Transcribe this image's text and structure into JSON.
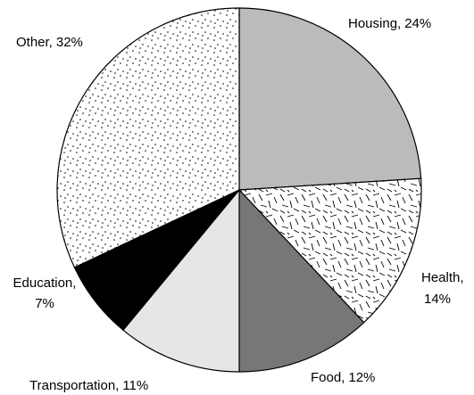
{
  "chart_data": {
    "type": "pie",
    "categories": [
      "Housing,",
      "Health,",
      "Food,",
      "Transportation,",
      "Education,",
      "Other,"
    ],
    "values": [
      24,
      14,
      12,
      11,
      7,
      32
    ],
    "value_labels": [
      "24%",
      "14%",
      "12%",
      "11%",
      "7%",
      "32%"
    ],
    "colors": [
      "#bbbbbb",
      "#ffffff",
      "#777777",
      "#e6e6e6",
      "#000000",
      "#ffffff"
    ],
    "patterns": [
      null,
      "dash",
      null,
      null,
      null,
      "dot"
    ]
  }
}
